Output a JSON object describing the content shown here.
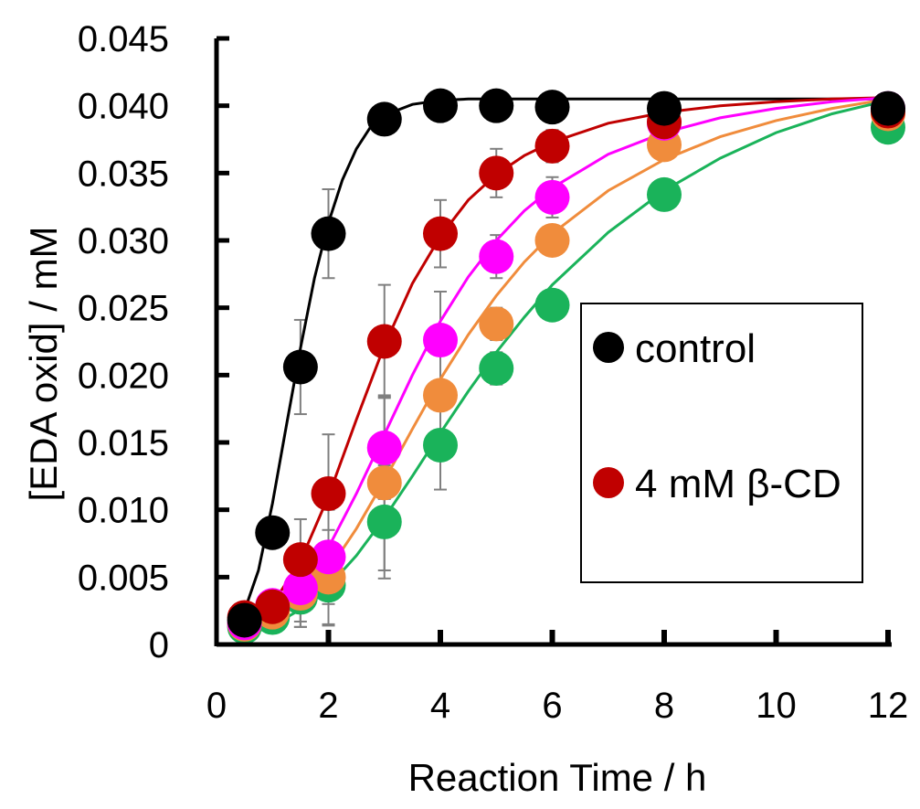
{
  "chart_data": {
    "type": "scatter",
    "xlabel": "Reaction Time / h",
    "ylabel": "[EDA oxid] / mM",
    "xlim": [
      0,
      12
    ],
    "ylim": [
      0,
      0.045
    ],
    "x_ticks": [
      "0",
      "2",
      "4",
      "6",
      "8",
      "10",
      "12"
    ],
    "y_ticks": [
      "0",
      "0.005",
      "0.010",
      "0.015",
      "0.020",
      "0.025",
      "0.030",
      "0.035",
      "0.040",
      "0.045"
    ],
    "grid": false,
    "legend_position": "right",
    "series": [
      {
        "name": "control",
        "color": "#000000",
        "x": [
          0.5,
          1,
          1.5,
          2,
          3,
          4,
          5,
          6,
          8,
          12
        ],
        "y": [
          0.0018,
          0.0083,
          0.0206,
          0.0305,
          0.039,
          0.04,
          0.04,
          0.0399,
          0.0398,
          0.0398
        ],
        "err": [
          0.0005,
          0.001,
          0.0035,
          0.0033,
          0,
          0,
          0,
          0,
          0,
          0
        ],
        "fit_x": [
          0.5,
          0.75,
          1,
          1.25,
          1.5,
          1.75,
          2,
          2.25,
          2.5,
          2.75,
          3,
          3.5,
          4,
          4.5,
          5,
          6,
          8,
          10,
          12
        ],
        "fit_y": [
          0.0025,
          0.0055,
          0.0105,
          0.0163,
          0.022,
          0.0272,
          0.0313,
          0.0345,
          0.0368,
          0.0384,
          0.0393,
          0.0401,
          0.0404,
          0.0405,
          0.0405,
          0.0405,
          0.0405,
          0.0405,
          0.0405
        ]
      },
      {
        "name": "4 mM β-CD",
        "color": "#c00000",
        "x": [
          0.5,
          1,
          1.5,
          2,
          3,
          4,
          5,
          6,
          8,
          12
        ],
        "y": [
          0.002,
          0.0028,
          0.0063,
          0.0112,
          0.0225,
          0.0305,
          0.035,
          0.037,
          0.0388,
          0.0396
        ],
        "err": [
          0.0004,
          0.0012,
          0.003,
          0.0044,
          0.0042,
          0.0025,
          0.0018,
          0.0012,
          0,
          0
        ],
        "fit_x": [
          0.5,
          1,
          1.5,
          2,
          2.5,
          3,
          3.5,
          4,
          4.5,
          5,
          5.5,
          6,
          7,
          8,
          9,
          10,
          11,
          12
        ],
        "fit_y": [
          0.0012,
          0.003,
          0.0062,
          0.011,
          0.0167,
          0.0222,
          0.0268,
          0.0303,
          0.033,
          0.0349,
          0.0363,
          0.0373,
          0.0387,
          0.0395,
          0.04,
          0.0403,
          0.0405,
          0.0406
        ]
      },
      {
        "color": "#ff00ff",
        "x": [
          0.5,
          1,
          1.5,
          2,
          3,
          4,
          5,
          6,
          8,
          12
        ],
        "y": [
          0.0016,
          0.0029,
          0.0042,
          0.0065,
          0.0146,
          0.0226,
          0.0288,
          0.0332,
          0.0387,
          0.0398
        ],
        "err": [
          0.0003,
          0.0006,
          0.0025,
          0.0035,
          0.0038,
          0.0036,
          0.0016,
          0.0015,
          0,
          0
        ],
        "fit_x": [
          0.5,
          1,
          1.5,
          2,
          2.5,
          3,
          3.5,
          4,
          4.5,
          5,
          5.5,
          6,
          7,
          8,
          9,
          10,
          11,
          12
        ],
        "fit_y": [
          0.0008,
          0.002,
          0.004,
          0.0072,
          0.0112,
          0.0156,
          0.02,
          0.024,
          0.0273,
          0.03,
          0.0322,
          0.0339,
          0.0364,
          0.038,
          0.0391,
          0.0398,
          0.0403,
          0.0406
        ]
      },
      {
        "color": "#f08c3c",
        "x": [
          0.5,
          1,
          1.5,
          2,
          3,
          4,
          5,
          6,
          8,
          12
        ],
        "y": [
          0.0015,
          0.0024,
          0.0038,
          0.005,
          0.012,
          0.0185,
          0.0238,
          0.03,
          0.0371,
          0.0394
        ],
        "err": [
          0.0003,
          0.0005,
          0.0025,
          0.0035,
          0.0065,
          0.0045,
          0.0012,
          0.0011,
          0,
          0
        ],
        "fit_x": [
          0.5,
          1,
          1.5,
          2,
          2.5,
          3,
          3.5,
          4,
          4.5,
          5,
          5.5,
          6,
          7,
          8,
          9,
          10,
          11,
          12
        ],
        "fit_y": [
          0.0007,
          0.0017,
          0.0032,
          0.0055,
          0.0086,
          0.0122,
          0.016,
          0.0197,
          0.023,
          0.0259,
          0.0284,
          0.0305,
          0.0337,
          0.036,
          0.0377,
          0.0389,
          0.0398,
          0.0405
        ]
      },
      {
        "color": "#1ab35a",
        "x": [
          0.5,
          1,
          1.5,
          2,
          3,
          4,
          5,
          6,
          8,
          12
        ],
        "y": [
          0.0013,
          0.002,
          0.0035,
          0.0044,
          0.0091,
          0.0148,
          0.0205,
          0.0252,
          0.0334,
          0.0384
        ],
        "err": [
          0.0003,
          0.0005,
          0.0022,
          0.003,
          0.0042,
          0.0033,
          0.0012,
          0.001,
          0,
          0
        ],
        "fit_x": [
          0.5,
          1,
          1.5,
          2,
          2.5,
          3,
          3.5,
          4,
          4.5,
          5,
          5.5,
          6,
          7,
          8,
          9,
          10,
          11,
          12
        ],
        "fit_y": [
          0.0006,
          0.0014,
          0.0026,
          0.0043,
          0.0066,
          0.0094,
          0.0125,
          0.0157,
          0.0188,
          0.0217,
          0.0243,
          0.0267,
          0.0306,
          0.0337,
          0.0361,
          0.038,
          0.0394,
          0.0404
        ]
      }
    ]
  }
}
